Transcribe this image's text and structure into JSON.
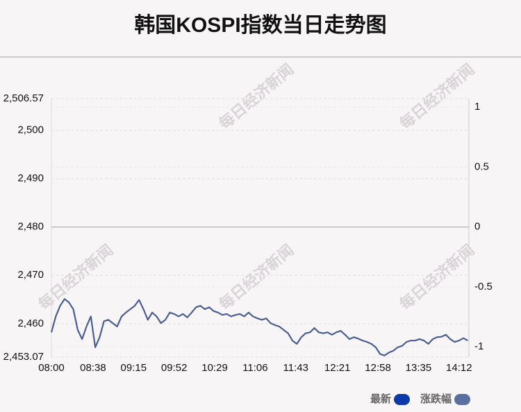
{
  "chart_data": {
    "type": "line",
    "title": "韩国KOSPI指数当日走势图",
    "watermark": "每日经济新闻",
    "x": [
      "08:00",
      "08:04",
      "08:08",
      "08:12",
      "08:16",
      "08:20",
      "08:24",
      "08:28",
      "08:32",
      "08:36",
      "08:40",
      "08:44",
      "08:48",
      "08:52",
      "08:56",
      "09:00",
      "09:04",
      "09:08",
      "09:12",
      "09:16",
      "09:20",
      "09:24",
      "09:28",
      "09:32",
      "09:36",
      "09:40",
      "09:44",
      "09:48",
      "09:52",
      "09:56",
      "10:00",
      "10:04",
      "10:08",
      "10:12",
      "10:16",
      "10:20",
      "10:24",
      "10:28",
      "10:32",
      "10:36",
      "10:40",
      "10:44",
      "10:48",
      "10:52",
      "10:56",
      "11:00",
      "11:04",
      "11:08",
      "11:12",
      "11:16",
      "11:20",
      "11:24",
      "11:28",
      "11:32",
      "11:36",
      "11:40",
      "11:44",
      "11:48",
      "11:52",
      "11:56",
      "12:00",
      "12:04",
      "12:08",
      "12:12",
      "12:16",
      "12:20",
      "12:24",
      "12:28",
      "12:32",
      "12:36",
      "12:40",
      "12:44",
      "12:48",
      "12:52",
      "12:56",
      "13:00",
      "13:04",
      "13:08",
      "13:12",
      "13:16",
      "13:20",
      "13:24",
      "13:28",
      "13:32",
      "13:36",
      "13:40",
      "13:44",
      "13:48",
      "13:52",
      "13:56",
      "14:00",
      "14:04",
      "14:08",
      "14:12",
      "14:16",
      "14:20"
    ],
    "series": [
      {
        "name": "最新",
        "color": "#4a5e92",
        "values": [
          2458.2,
          2461.5,
          2463.7,
          2465.1,
          2464.4,
          2463.0,
          2458.7,
          2456.8,
          2459.4,
          2461.5,
          2455.1,
          2457.2,
          2460.5,
          2460.8,
          2460.1,
          2459.4,
          2461.5,
          2462.3,
          2463.0,
          2463.7,
          2464.9,
          2463.0,
          2460.8,
          2462.3,
          2461.5,
          2460.1,
          2460.8,
          2462.3,
          2462.0,
          2461.5,
          2462.0,
          2461.3,
          2462.3,
          2463.4,
          2463.7,
          2463.0,
          2463.4,
          2462.6,
          2462.3,
          2461.8,
          2462.0,
          2461.5,
          2461.8,
          2462.0,
          2461.5,
          2462.3,
          2461.5,
          2461.1,
          2460.8,
          2461.1,
          2460.1,
          2459.7,
          2459.4,
          2458.7,
          2458.0,
          2456.5,
          2455.8,
          2457.2,
          2458.0,
          2458.2,
          2459.1,
          2458.2,
          2458.0,
          2458.2,
          2457.7,
          2458.2,
          2458.5,
          2457.7,
          2456.8,
          2457.2,
          2456.9,
          2456.5,
          2456.2,
          2455.8,
          2455.1,
          2453.7,
          2453.4,
          2454.0,
          2454.4,
          2455.1,
          2455.4,
          2456.2,
          2456.5,
          2456.5,
          2456.8,
          2456.5,
          2455.8,
          2456.8,
          2457.2,
          2457.3,
          2457.7,
          2456.8,
          2456.2,
          2456.5,
          2457.0,
          2456.5
        ]
      }
    ],
    "legend": [
      {
        "name": "最新",
        "color": "#0d3aa9"
      },
      {
        "name": "涨跌幅",
        "color": "#5a6fa0"
      }
    ],
    "xlim": [
      "08:00",
      "14:21"
    ],
    "xticks": [
      "08:00",
      "08:38",
      "09:15",
      "09:52",
      "10:29",
      "11:06",
      "11:43",
      "12:21",
      "12:58",
      "13:35",
      "14:12"
    ],
    "ylim": [
      2453.07,
      2506.57
    ],
    "yticks": [
      {
        "value": 2453.07,
        "label": "2,453.07"
      },
      {
        "value": 2460,
        "label": "2,460"
      },
      {
        "value": 2470,
        "label": "2,470"
      },
      {
        "value": 2480,
        "label": "2,480"
      },
      {
        "value": 2490,
        "label": "2,490"
      },
      {
        "value": 2500,
        "label": "2,500"
      },
      {
        "value": 2506.57,
        "label": "2,506.57"
      }
    ],
    "y2lim": [
      -1.086,
      1.071
    ],
    "y2ticks": [
      -1,
      -0.5,
      0,
      0.5,
      1
    ],
    "grid": true
  }
}
